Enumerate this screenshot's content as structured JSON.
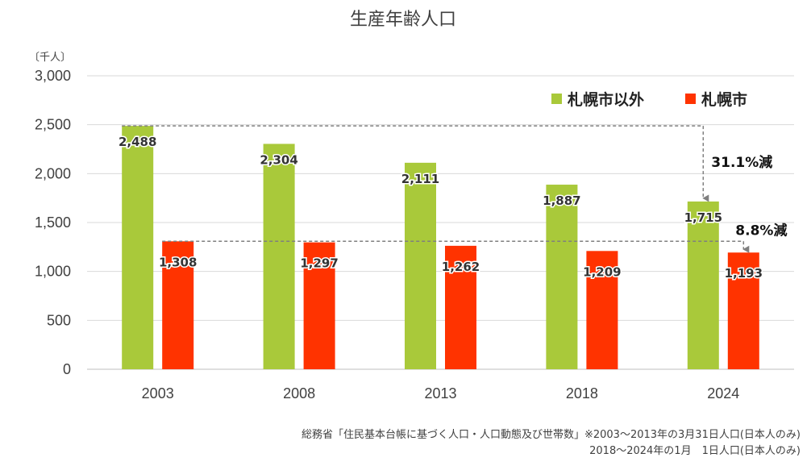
{
  "chart_data": {
    "type": "bar",
    "title": "生産年齢人口",
    "unit_label": "〔千人〕",
    "categories": [
      "2003",
      "2008",
      "2013",
      "2018",
      "2024"
    ],
    "ylim": [
      0,
      3000
    ],
    "yticks": [
      0,
      500,
      1000,
      1500,
      2000,
      2500,
      3000
    ],
    "ytick_labels": [
      "0",
      "500",
      "1,000",
      "1,500",
      "2,000",
      "2,500",
      "3,000"
    ],
    "grid": true,
    "legend_position": "top-right",
    "series": [
      {
        "name": "札幌市以外",
        "color": "#a9c93a",
        "values": [
          2488,
          2304,
          2111,
          1887,
          1715
        ],
        "labels": [
          "2,488",
          "2,304",
          "2,111",
          "1,887",
          "1,715"
        ]
      },
      {
        "name": "札幌市",
        "color": "#ff3300",
        "values": [
          1308,
          1297,
          1262,
          1209,
          1193
        ],
        "labels": [
          "1,308",
          "1,297",
          "1,262",
          "1,209",
          "1,193"
        ]
      }
    ],
    "annotations": [
      {
        "text": "31.1%減",
        "series": 0,
        "from": 0,
        "to": 4
      },
      {
        "text": "8.8%減",
        "series": 1,
        "from": 0,
        "to": 4
      }
    ]
  },
  "source_note": {
    "line1": "総務省「住民基本台帳に基づく人口・人口動態及び世帯数」※2003～2013年の3月31日人口(日本人のみ)",
    "line2": "2018～2024年の1月　1日人口(日本人のみ)"
  }
}
